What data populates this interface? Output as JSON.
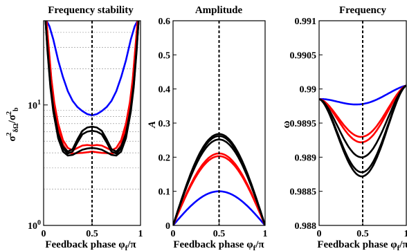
{
  "chart_data": [
    {
      "type": "line",
      "title": "Frequency stability",
      "xlabel": "Feedback phase φ_f/π",
      "ylabel": "σ²_δΩ/σ²_b",
      "yscale": "log",
      "xlim": [
        0,
        1
      ],
      "ylim": [
        1,
        50
      ],
      "xticks": [
        "0",
        "0.5",
        "1"
      ],
      "yticks": [
        {
          "value": 1,
          "label": "10^0"
        },
        {
          "value": 10,
          "label": "10^1"
        }
      ],
      "grid": "minor-y-dotted",
      "vline": 0.5,
      "series": [
        {
          "color": "#0000ff",
          "x": [
            0.03,
            0.06,
            0.1,
            0.15,
            0.2,
            0.25,
            0.3,
            0.35,
            0.4,
            0.45,
            0.5,
            0.55,
            0.6,
            0.65,
            0.7,
            0.75,
            0.8,
            0.85,
            0.9,
            0.94,
            0.97
          ],
          "y": [
            50,
            45,
            35,
            23.5,
            17,
            13,
            10.8,
            9.6,
            8.9,
            8.4,
            8.2,
            8.4,
            8.9,
            9.6,
            10.8,
            13,
            17,
            23.5,
            35,
            45,
            50
          ]
        },
        {
          "color": "#ff0000",
          "x": [
            0.03,
            0.05,
            0.08,
            0.11,
            0.15,
            0.2,
            0.25,
            0.3,
            0.35,
            0.4,
            0.45,
            0.5,
            0.55,
            0.6,
            0.65,
            0.7,
            0.75,
            0.8,
            0.85,
            0.89,
            0.92,
            0.95,
            0.97
          ],
          "y": [
            50,
            32,
            16.5,
            10.5,
            7,
            5.1,
            4.4,
            4.2,
            4.4,
            4.6,
            4.65,
            4.6,
            4.65,
            4.6,
            4.4,
            4.2,
            4.4,
            5.1,
            7,
            10.5,
            16.5,
            32,
            50
          ]
        },
        {
          "color": "#ff0000",
          "x": [
            0.03,
            0.05,
            0.08,
            0.11,
            0.15,
            0.2,
            0.25,
            0.3,
            0.35,
            0.4,
            0.45,
            0.5,
            0.55,
            0.6,
            0.65,
            0.7,
            0.75,
            0.8,
            0.85,
            0.89,
            0.92,
            0.95,
            0.97
          ],
          "y": [
            50,
            31,
            16,
            10,
            6.6,
            4.7,
            4.05,
            3.95,
            3.98,
            4.0,
            4.05,
            4.1,
            4.05,
            4.0,
            3.98,
            3.95,
            4.05,
            4.7,
            6.6,
            10,
            16,
            31,
            50
          ]
        },
        {
          "color": "#000000",
          "x": [
            0.02,
            0.04,
            0.07,
            0.1,
            0.15,
            0.2,
            0.25,
            0.3,
            0.35,
            0.4,
            0.45,
            0.5,
            0.55,
            0.6,
            0.65,
            0.7,
            0.75,
            0.8,
            0.85,
            0.9,
            0.93,
            0.96,
            0.98
          ],
          "y": [
            50,
            30,
            15,
            9.5,
            5.8,
            4.5,
            4.1,
            4.3,
            5.2,
            6.1,
            6.5,
            6.6,
            6.5,
            6.1,
            5.2,
            4.3,
            4.1,
            4.5,
            5.8,
            9.5,
            15,
            30,
            50
          ]
        },
        {
          "color": "#000000",
          "x": [
            0.02,
            0.04,
            0.07,
            0.1,
            0.15,
            0.2,
            0.25,
            0.3,
            0.35,
            0.4,
            0.45,
            0.5,
            0.55,
            0.6,
            0.65,
            0.7,
            0.75,
            0.8,
            0.85,
            0.9,
            0.93,
            0.96,
            0.98
          ],
          "y": [
            50,
            29,
            14.5,
            9.2,
            5.6,
            4.35,
            3.95,
            4.1,
            4.9,
            5.7,
            6.0,
            6.1,
            6.0,
            5.7,
            4.9,
            4.1,
            3.95,
            4.35,
            5.6,
            9.2,
            14.5,
            29,
            50
          ]
        },
        {
          "color": "#000000",
          "x": [
            0.02,
            0.04,
            0.07,
            0.1,
            0.15,
            0.2,
            0.25,
            0.3,
            0.35,
            0.4,
            0.45,
            0.5,
            0.55,
            0.6,
            0.65,
            0.7,
            0.75,
            0.8,
            0.85,
            0.9,
            0.93,
            0.96,
            0.98
          ],
          "y": [
            50,
            28,
            14,
            8.8,
            5.3,
            4.1,
            3.8,
            3.85,
            4.05,
            4.25,
            4.35,
            4.4,
            4.35,
            4.25,
            4.05,
            3.85,
            3.8,
            4.1,
            5.3,
            8.8,
            14,
            28,
            50
          ]
        }
      ]
    },
    {
      "type": "line",
      "title": "Amplitude",
      "xlabel": "Feedback phase φ_f/π",
      "ylabel": "A",
      "xlim": [
        0,
        1
      ],
      "ylim": [
        0,
        0.6
      ],
      "xticks": [
        "0",
        "0.5",
        "1"
      ],
      "yticks": [
        "0",
        "0.1",
        "0.2",
        "0.3",
        "0.4",
        "0.5",
        "0.6"
      ],
      "vline": 0.5,
      "series": [
        {
          "color": "#0000ff",
          "peak": 0.1
        },
        {
          "color": "#ff0000",
          "peak": 0.211
        },
        {
          "color": "#ff0000",
          "peak": 0.203
        },
        {
          "color": "#000000",
          "peak": 0.268
        },
        {
          "color": "#000000",
          "peak": 0.262
        },
        {
          "color": "#000000",
          "peak": 0.252
        }
      ]
    },
    {
      "type": "line",
      "title": "Frequency",
      "xlabel": "Feedback phase φ_f/π",
      "ylabel": "ω",
      "xlim": [
        0,
        1
      ],
      "ylim": [
        0.988,
        0.991
      ],
      "xticks": [
        "0",
        "0.5",
        "1"
      ],
      "yticks": [
        "0.988",
        "0.9885",
        "0.989",
        "0.9895",
        "0.99",
        "0.9905",
        "0.991"
      ],
      "vline": 0.5,
      "series": [
        {
          "color": "#0000ff",
          "min": 0.98978
        },
        {
          "color": "#ff0000",
          "min": 0.9893
        },
        {
          "color": "#ff0000",
          "min": 0.98922
        },
        {
          "color": "#000000",
          "min": 0.989
        },
        {
          "color": "#000000",
          "min": 0.98878
        },
        {
          "color": "#000000",
          "min": 0.98872
        }
      ]
    }
  ]
}
